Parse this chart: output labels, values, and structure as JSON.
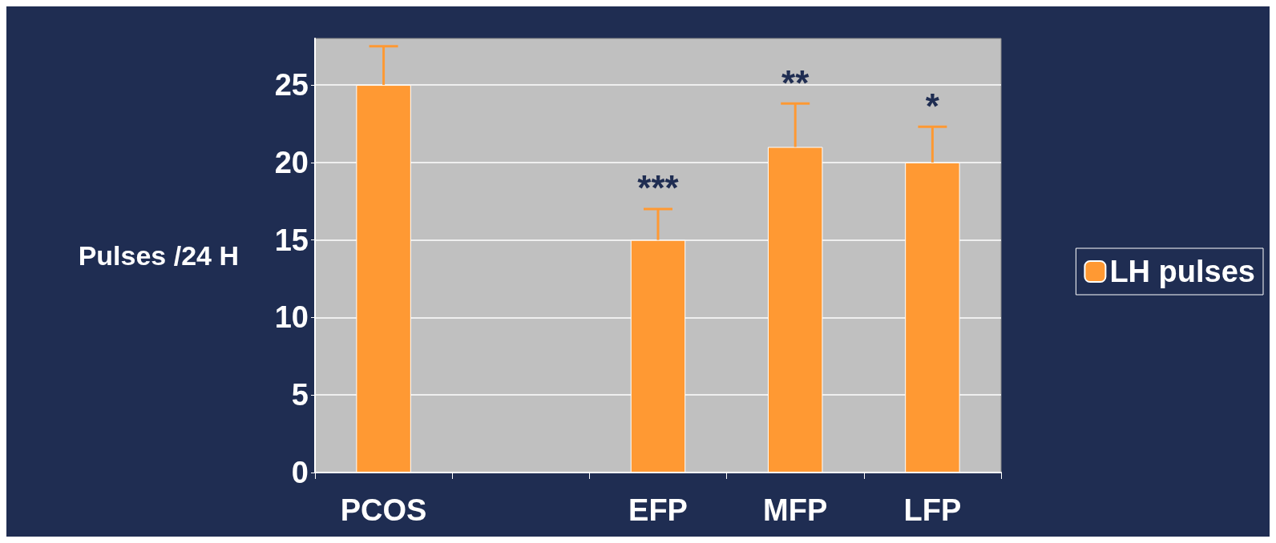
{
  "chart_data": {
    "type": "bar",
    "ylabel": "Pulses /24 H",
    "categories": [
      "PCOS",
      null,
      "EFP",
      "MFP",
      "LFP"
    ],
    "series": [
      {
        "name": "LH pulses",
        "color": "#ff9933",
        "values": [
          25,
          null,
          15,
          21,
          20
        ],
        "errors": [
          2.5,
          null,
          2,
          2.8,
          2.3
        ]
      }
    ],
    "ylim": [
      0,
      28
    ],
    "yticks": [
      0,
      5,
      10,
      15,
      20,
      25
    ],
    "grid": "y",
    "legend": "right",
    "annotations": [
      {
        "text": "***",
        "x": "EFP",
        "y": 15
      },
      {
        "text": "**",
        "x": "MFP",
        "y": 21
      },
      {
        "text": "*",
        "x": "LFP",
        "y": 20
      }
    ]
  }
}
